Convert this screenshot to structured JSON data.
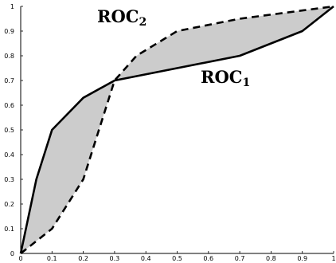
{
  "chart_data": {
    "type": "line",
    "xlim": [
      0,
      1
    ],
    "ylim": [
      0,
      1
    ],
    "x_ticks": [
      "0",
      "0.1",
      "0.2",
      "0.3",
      "0.4",
      "0.5",
      "0.6",
      "0.7",
      "0.8",
      "0.9",
      "1"
    ],
    "y_ticks": [
      "0",
      "0.1",
      "0.2",
      "0.3",
      "0.4",
      "0.5",
      "0.6",
      "0.7",
      "0.8",
      "0.9",
      "1"
    ],
    "grid": false,
    "shaded_region_between_series": true,
    "shade_color": "#cccccc",
    "series": [
      {
        "name": "ROC",
        "subscript": "1",
        "style": "solid",
        "color": "#000000",
        "points": [
          [
            0,
            0
          ],
          [
            0.05,
            0.3
          ],
          [
            0.1,
            0.5
          ],
          [
            0.2,
            0.63
          ],
          [
            0.3,
            0.7
          ],
          [
            0.7,
            0.8
          ],
          [
            0.9,
            0.9
          ],
          [
            1,
            1
          ]
        ]
      },
      {
        "name": "ROC",
        "subscript": "2",
        "style": "dashed",
        "color": "#000000",
        "points": [
          [
            0,
            0
          ],
          [
            0.1,
            0.1
          ],
          [
            0.2,
            0.3
          ],
          [
            0.3,
            0.7
          ],
          [
            0.37,
            0.8
          ],
          [
            0.5,
            0.9
          ],
          [
            0.7,
            0.95
          ],
          [
            1,
            1
          ]
        ]
      }
    ]
  }
}
